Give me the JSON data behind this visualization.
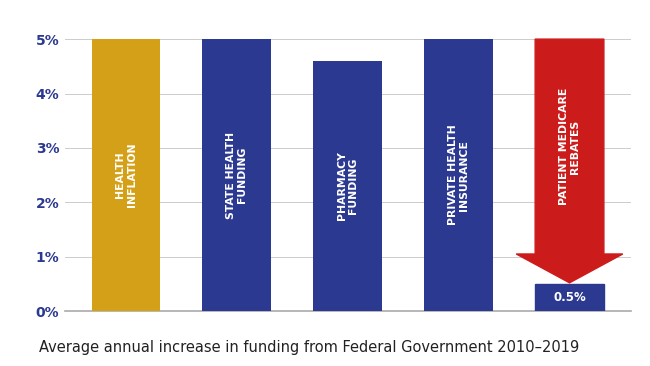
{
  "categories": [
    "HEALTH\nINFLATION",
    "STATE HEALTH\nFUNDING",
    "PHARMACY\nFUNDING",
    "PRIVATE HEALTH\nINSURANCE",
    "PATIENT MEDICARE\nREBATES"
  ],
  "values": [
    5.0,
    5.0,
    4.6,
    5.0,
    5.0
  ],
  "bar_colors": [
    "#D4A017",
    "#2B3990",
    "#2B3990",
    "#2B3990",
    "#CC1B1B"
  ],
  "highlight_value": 0.5,
  "highlight_color": "#2B3990",
  "background_color": "#FFFFFF",
  "ylabel_ticks": [
    "0%",
    "1%",
    "2%",
    "3%",
    "4%",
    "5%"
  ],
  "ytick_values": [
    0,
    1,
    2,
    3,
    4,
    5
  ],
  "caption": "Average annual increase in funding from Federal Government 2010–2019",
  "arrow_color": "#CC1B1B",
  "label_fontsize": 7.8,
  "caption_fontsize": 10.5,
  "ytick_color": "#2B3990"
}
